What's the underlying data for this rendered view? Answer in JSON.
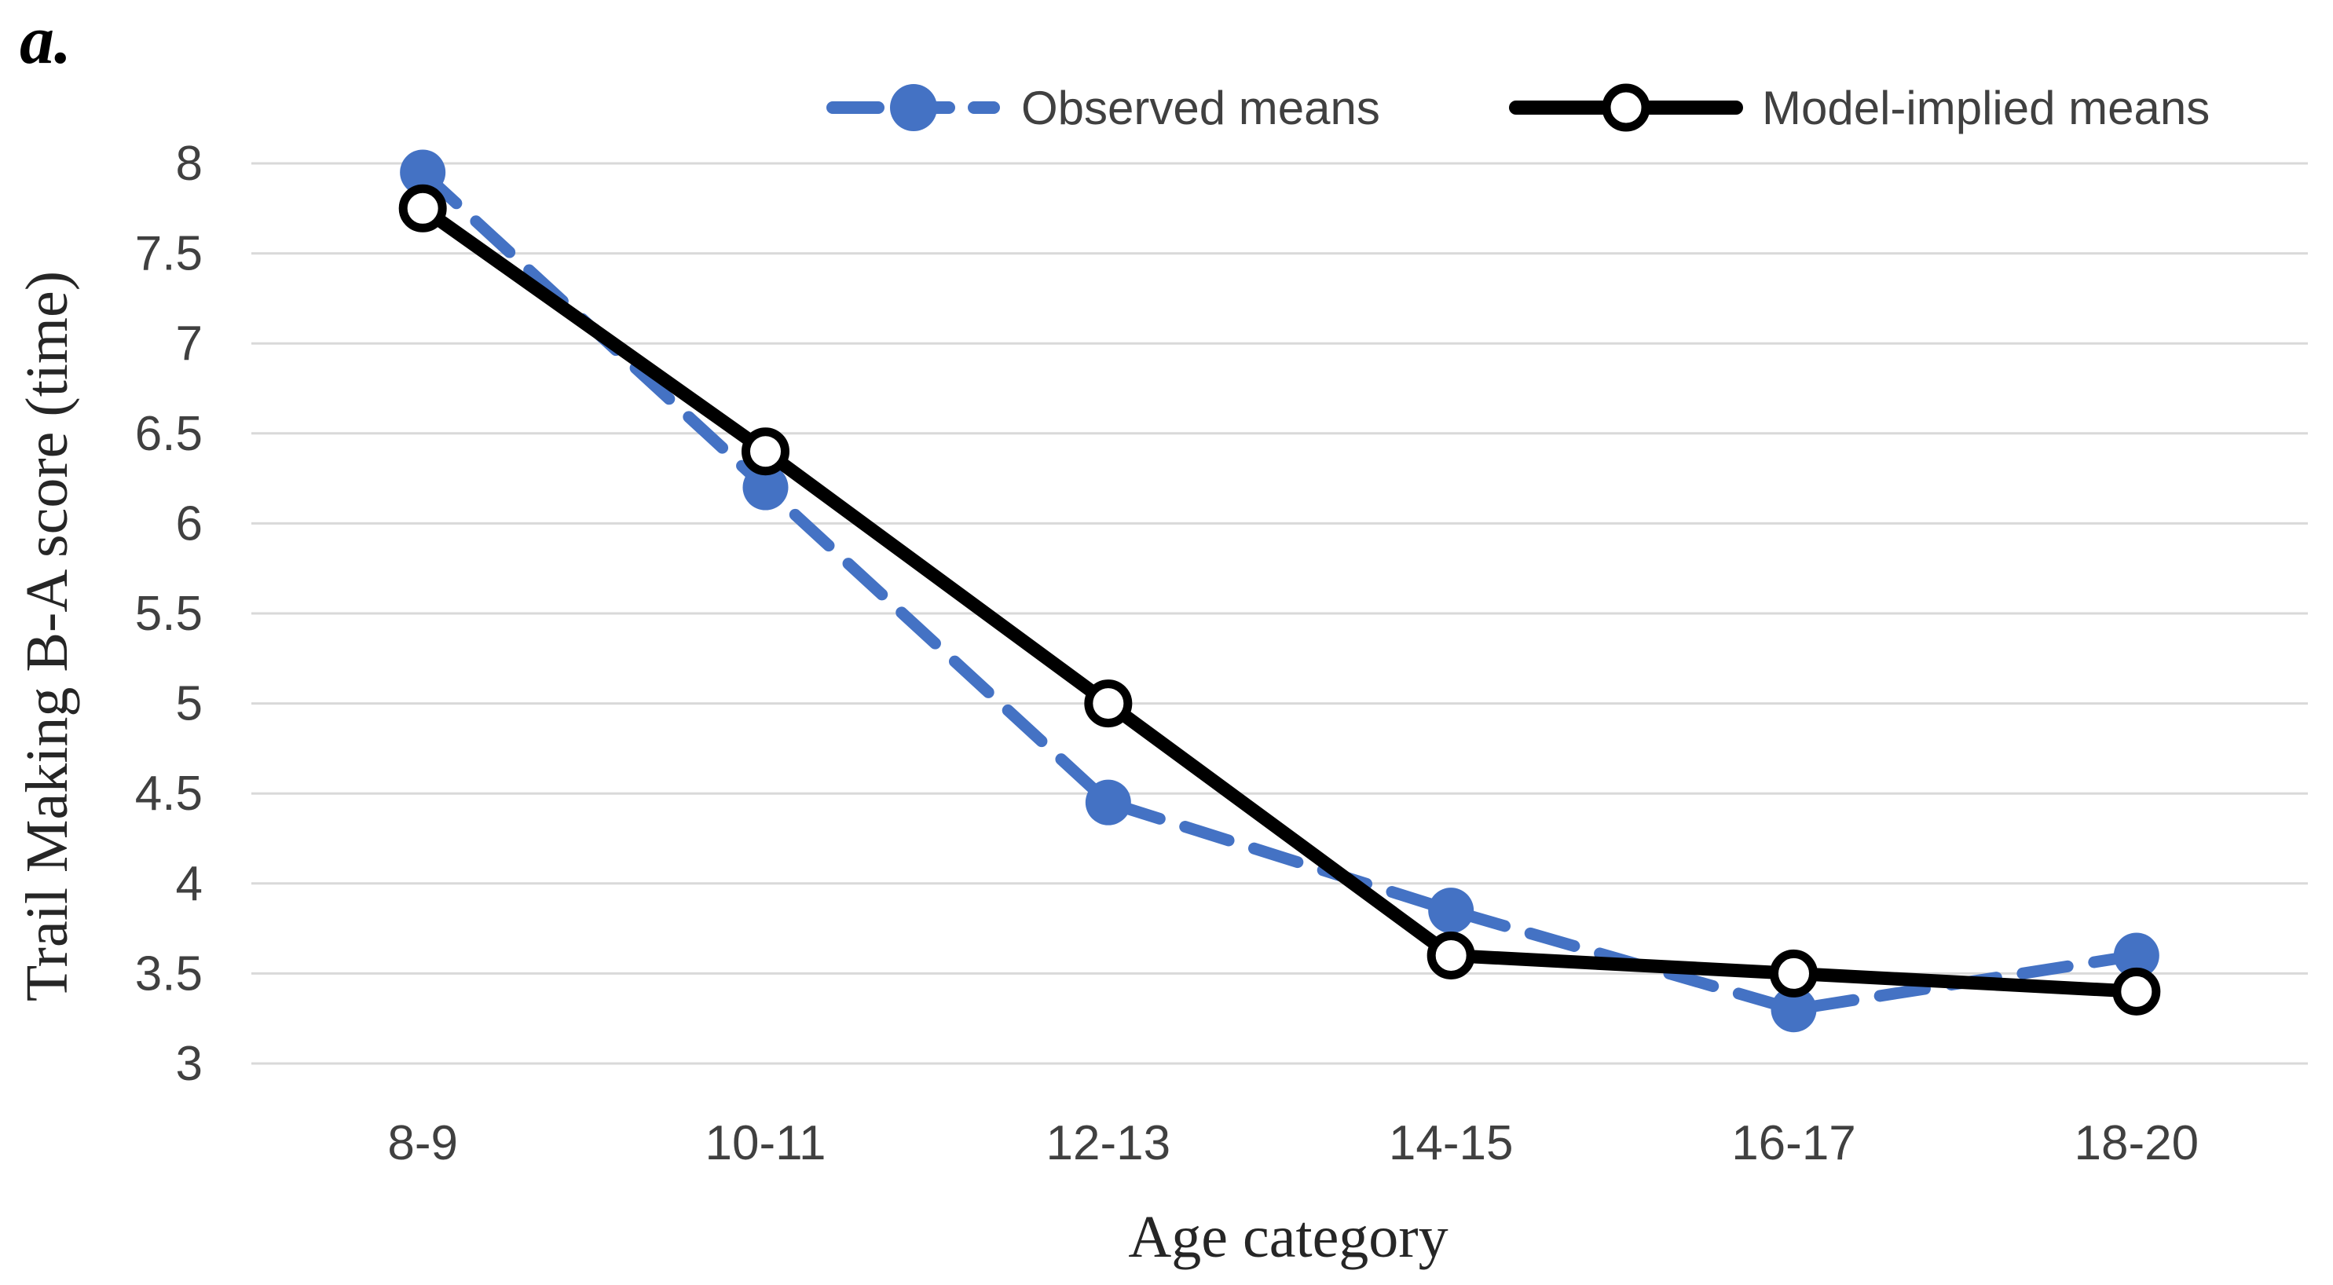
{
  "panel_label": "a.",
  "chart_data": {
    "type": "line",
    "title": "",
    "categories": [
      "8-9",
      "10-11",
      "12-13",
      "14-15",
      "16-17",
      "18-20"
    ],
    "series": [
      {
        "name": "Observed means",
        "values": [
          7.95,
          6.2,
          4.45,
          3.85,
          3.3,
          3.6
        ],
        "color": "#4472C4",
        "line_style": "dashed",
        "marker": "filled-circle"
      },
      {
        "name": "Model-implied means",
        "values": [
          7.75,
          6.4,
          5.0,
          3.6,
          3.5,
          3.4
        ],
        "color": "#000000",
        "line_style": "solid",
        "marker": "open-circle"
      }
    ],
    "xlabel": "Age category",
    "ylabel": "Trail Making B-A score (time)",
    "ylim": [
      3,
      8
    ],
    "ytick_step": 0.5,
    "yticks": [
      "8",
      "7.5",
      "7",
      "6.5",
      "6",
      "5.5",
      "5",
      "4.5",
      "4",
      "3.5",
      "3"
    ],
    "grid": "horizontal-only",
    "legend_position": "top",
    "colors": {
      "observed": "#4472C4",
      "model_implied": "#000000",
      "gridline": "#D9D9D9",
      "tick_text": "#404040",
      "axis_title_text": "#262626",
      "background": "#FFFFFF"
    }
  }
}
